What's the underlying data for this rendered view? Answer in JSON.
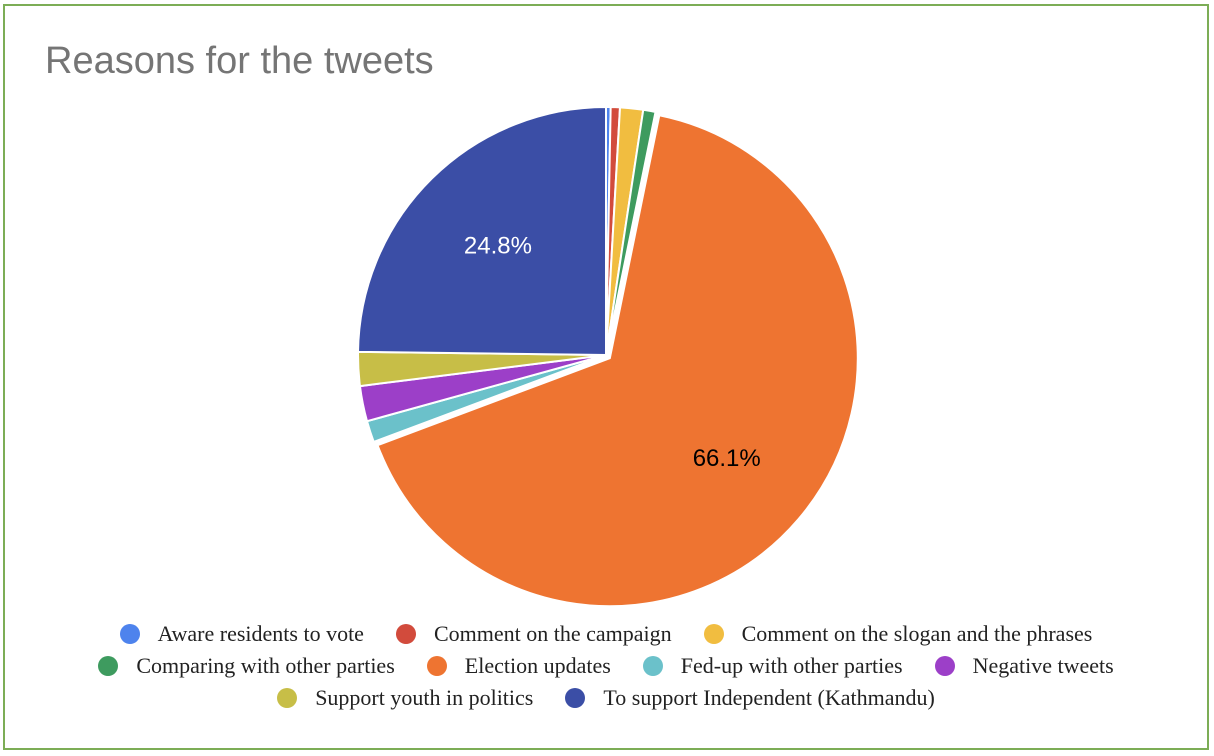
{
  "chart_data": {
    "type": "pie",
    "title": "Reasons for the tweets",
    "categories": [
      "Aware residents to vote",
      "Comment on the campaign",
      "Comment on the slogan and the phrases",
      "Comparing with other parties",
      "Election updates",
      "Fed-up with other parties",
      "Negative tweets",
      "Support youth in politics",
      "To support Independent (Kathmandu)"
    ],
    "values": [
      0.3,
      0.6,
      1.5,
      0.8,
      66.1,
      1.4,
      2.3,
      2.2,
      24.8
    ],
    "colors": [
      "#4e83ed",
      "#d24b3c",
      "#f1bd40",
      "#3e9b5f",
      "#ee7431",
      "#6bc1ca",
      "#9c3fc8",
      "#c7be47",
      "#3b4ea6"
    ],
    "data_labels": {
      "4": "66.1%",
      "8": "24.8%"
    },
    "label_colors": {
      "4": "#000000",
      "8": "#ffffff"
    },
    "exploded": [
      4
    ],
    "legend_position": "bottom",
    "legend_rows": [
      [
        0,
        1,
        2
      ],
      [
        3,
        4,
        5,
        6
      ],
      [
        7,
        8
      ]
    ]
  },
  "frame": {
    "border_color": "#7cad56"
  }
}
